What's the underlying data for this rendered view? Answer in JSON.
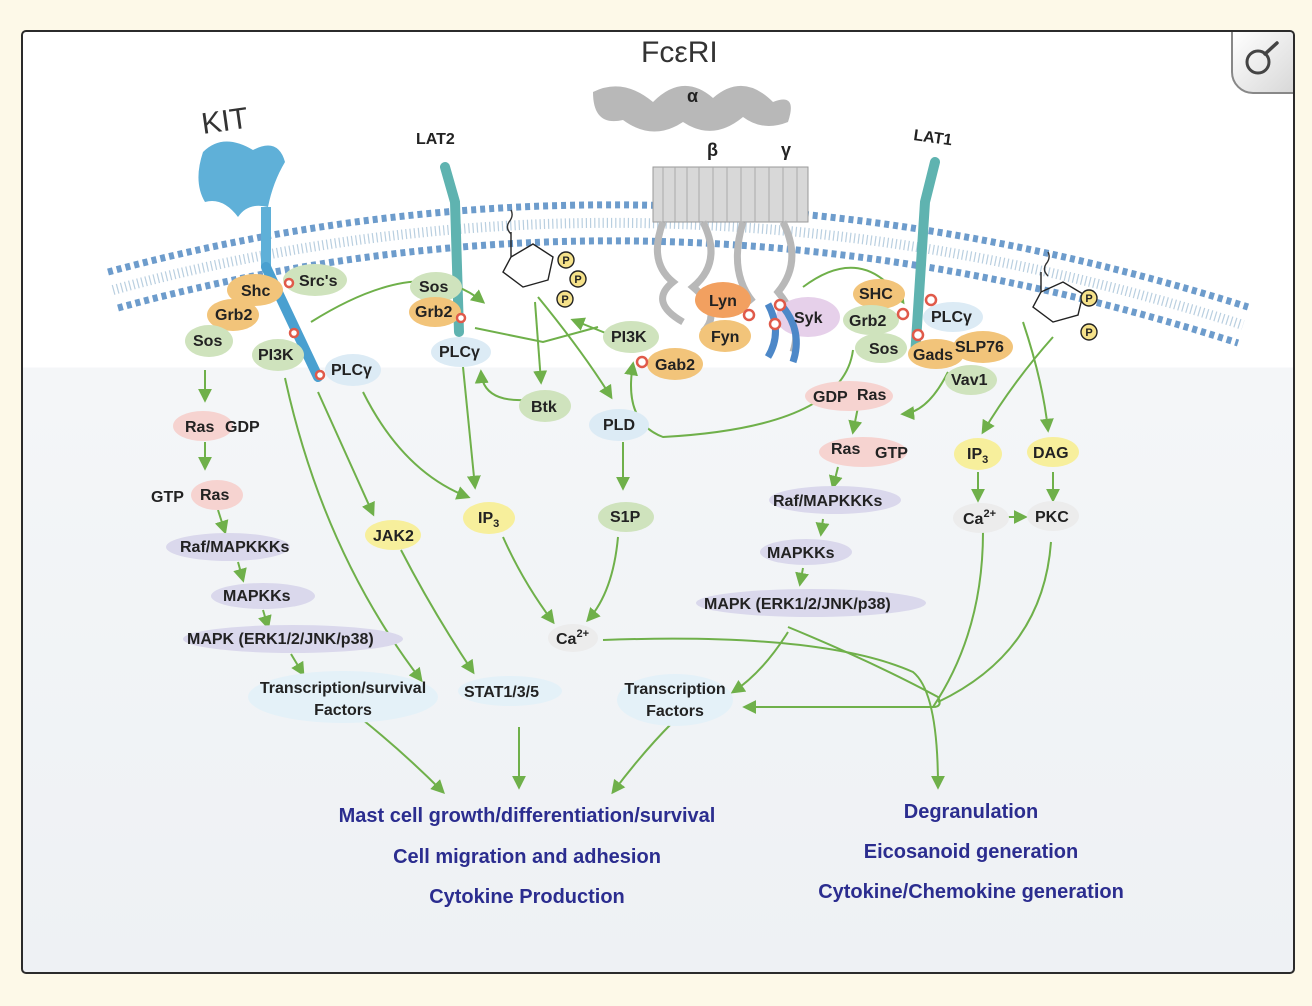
{
  "receptors": {
    "kit": "KIT",
    "lat2": "LAT2",
    "fceri": "FcεRI",
    "lat1": "LAT1",
    "alpha": "α",
    "beta": "β",
    "gamma": "γ"
  },
  "membrane_proteins": {
    "src": "Src's",
    "shc": "Shc",
    "grb2_kit": "Grb2",
    "sos_kit": "Sos",
    "pi3k_kit": "PI3K",
    "plcg_kit": "PLCγ",
    "sos_lat2": "Sos",
    "grb2_lat2": "Grb2",
    "plcg_lat2": "PLCγ",
    "btk": "Btk",
    "pi3k_gab": "PI3K",
    "gab2": "Gab2",
    "lyn": "Lyn",
    "fyn": "Fyn",
    "syk": "Syk",
    "shc_lat1": "SHC",
    "grb2_lat1": "Grb2",
    "plcg_lat1": "PLCγ",
    "sos_lat1": "Sos",
    "gads": "Gads",
    "slp76": "SLP76",
    "vav1": "Vav1",
    "p": "P"
  },
  "kit_pathway": {
    "ras_gdp_ras": "Ras",
    "ras_gdp": "GDP",
    "gtp": "GTP",
    "gtp_ras": "Ras",
    "raf": "Raf/MAPKKKs",
    "mapkks": "MAPKKs",
    "mapk": "MAPK (ERK1/2/JNK/p38)",
    "tf_1": "Transcription/survival",
    "tf_2": "Factors",
    "jak2": "JAK2",
    "stat": "STAT1/3/5"
  },
  "lat2_pathway": {
    "ip3": "IP",
    "ip3_sub": "3",
    "pld": "PLD",
    "s1p": "S1P",
    "ca": "Ca",
    "ca_sup": "2+",
    "tf_1": "Transcription",
    "tf_2": "Factors"
  },
  "lat1_pathway": {
    "gdp": "GDP",
    "gdp_ras": "Ras",
    "gtp_ras": "Ras",
    "gtp": "GTP",
    "raf": "Raf/MAPKKKs",
    "mapkks": "MAPKKs",
    "mapk": "MAPK (ERK1/2/JNK/p38)",
    "ip3": "IP",
    "ip3_sub": "3",
    "dag": "DAG",
    "ca": "Ca",
    "ca_sup": "2+",
    "pkc": "PKC"
  },
  "outcomes_left": [
    "Mast cell growth/differentiation/survival",
    "Cell migration and adhesion",
    "Cytokine Production"
  ],
  "outcomes_right": [
    "Degranulation",
    "Eicosanoid generation",
    "Cytokine/Chemokine generation"
  ],
  "colors": {
    "arrow": "#6fb04a",
    "outcome_text": "#2b2d8f",
    "kit_receptor": "#5fb0d8",
    "lat": "#5fb3b0",
    "membrane_head": "#6d9ccc",
    "orange_protein": "#f2c47a",
    "green_protein": "#cfe3bd",
    "pink_protein": "#f6d3d0",
    "lavender_protein": "#dad8ec",
    "yellow_protein": "#f7ef9c",
    "blue_protein": "#dcebf5",
    "phospho": "#e05a4a"
  },
  "icons": {
    "zoom": "magnifier-icon"
  }
}
